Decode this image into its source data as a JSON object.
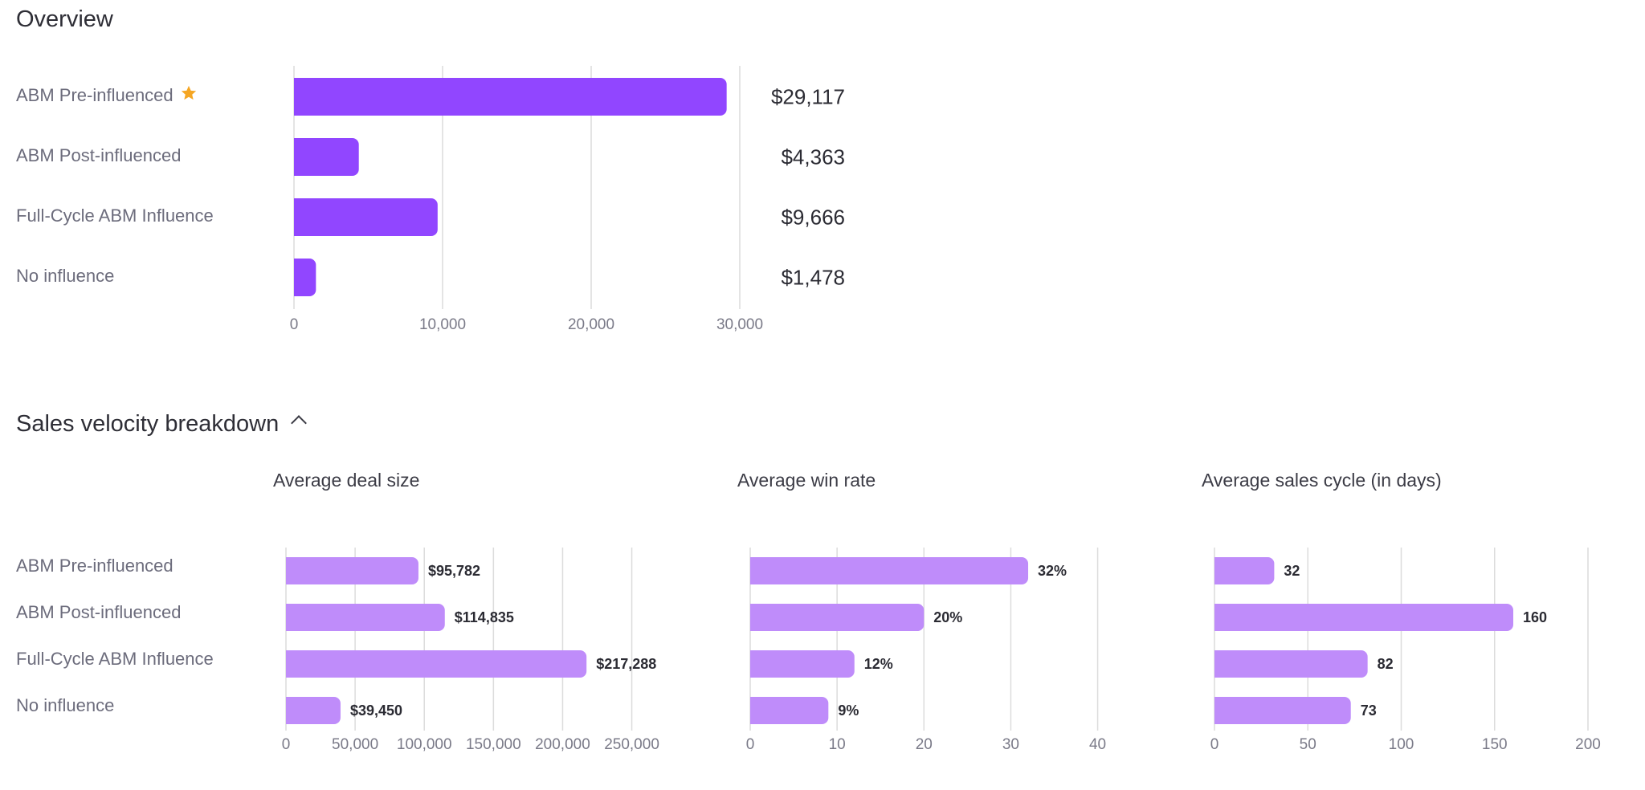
{
  "overview": {
    "title": "Overview",
    "starred_row": 0,
    "colors": {
      "bar": "#9146ff",
      "star": "#f5a623",
      "grid": "#dcdcdc",
      "tick": "#7a7a88"
    }
  },
  "velocity": {
    "title": "Sales velocity breakdown",
    "row_labels": [
      "ABM Pre-influenced",
      "ABM Post-influenced",
      "Full-Cycle ABM Influence",
      "No influence"
    ],
    "colors": {
      "bar": "#bf8cfa",
      "grid": "#dcdcdc",
      "tick": "#7a7a88",
      "label": "#2b2b33"
    }
  },
  "chart_data": [
    {
      "type": "bar",
      "orientation": "horizontal",
      "title": "Overview",
      "categories": [
        "ABM Pre-influenced",
        "ABM Post-influenced",
        "Full-Cycle ABM Influence",
        "No influence"
      ],
      "values": [
        29117,
        4363,
        9666,
        1478
      ],
      "value_labels": [
        "$29,117",
        "$4,363",
        "$9,666",
        "$1,478"
      ],
      "xlim": [
        0,
        30000
      ],
      "xticks": [
        0,
        10000,
        20000,
        30000
      ],
      "xtick_labels": [
        "0",
        "10,000",
        "20,000",
        "30,000"
      ],
      "grid": true
    },
    {
      "type": "bar",
      "orientation": "horizontal",
      "title": "Average deal size",
      "categories": [
        "ABM Pre-influenced",
        "ABM Post-influenced",
        "Full-Cycle ABM Influence",
        "No influence"
      ],
      "values": [
        95782,
        114835,
        217288,
        39450
      ],
      "value_labels": [
        "$95,782",
        "$114,835",
        "$217,288",
        "$39,450"
      ],
      "xlim": [
        0,
        270000
      ],
      "xticks": [
        0,
        50000,
        100000,
        150000,
        200000,
        250000
      ],
      "xtick_labels": [
        "0",
        "50,000",
        "100,000",
        "150,000",
        "200,000",
        "250,000"
      ],
      "grid": true
    },
    {
      "type": "bar",
      "orientation": "horizontal",
      "title": "Average win rate",
      "categories": [
        "ABM Pre-influenced",
        "ABM Post-influenced",
        "Full-Cycle ABM Influence",
        "No influence"
      ],
      "values": [
        32,
        20,
        12,
        9
      ],
      "value_labels": [
        "32%",
        "20%",
        "12%",
        "9%"
      ],
      "xlim": [
        0,
        43
      ],
      "xticks": [
        0,
        10,
        20,
        30,
        40
      ],
      "xtick_labels": [
        "0",
        "10",
        "20",
        "30",
        "40"
      ],
      "grid": true
    },
    {
      "type": "bar",
      "orientation": "horizontal",
      "title": "Average sales cycle (in days)",
      "categories": [
        "ABM Pre-influenced",
        "ABM Post-influenced",
        "Full-Cycle ABM Influence",
        "No influence"
      ],
      "values": [
        32,
        160,
        82,
        73
      ],
      "value_labels": [
        "32",
        "160",
        "82",
        "73"
      ],
      "xlim": [
        0,
        200
      ],
      "xticks": [
        0,
        50,
        100,
        150,
        200
      ],
      "xtick_labels": [
        "0",
        "50",
        "100",
        "150",
        "200"
      ],
      "grid": true
    }
  ]
}
